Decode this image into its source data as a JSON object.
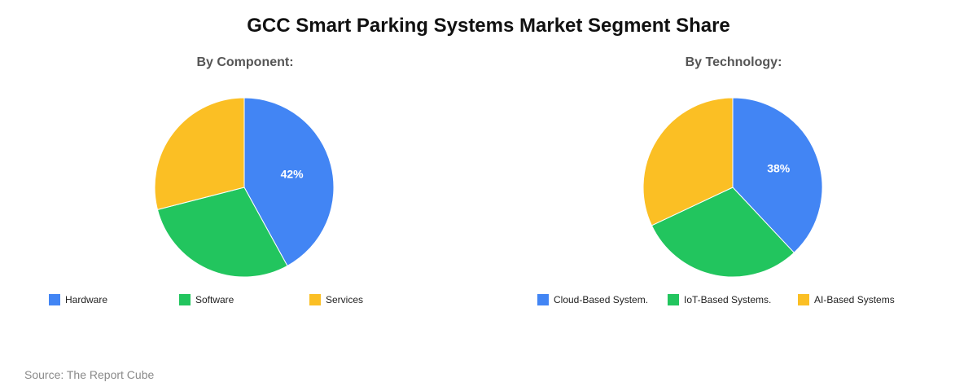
{
  "title": "GCC Smart Parking Systems Market Segment Share",
  "source": "Source: The Report Cube",
  "chart_data": [
    {
      "type": "pie",
      "title": "By Component:",
      "categories": [
        "Hardware",
        "Software",
        "Services"
      ],
      "values": [
        42,
        29,
        29
      ],
      "colors": [
        "#4285F4",
        "#22C55E",
        "#FBBF24"
      ],
      "data_labels": [
        "42%",
        "",
        ""
      ],
      "legend": "bottom"
    },
    {
      "type": "pie",
      "title": "By Technology:",
      "categories": [
        "Cloud-Based System.",
        "IoT-Based Systems.",
        "AI-Based Systems"
      ],
      "values": [
        38,
        30,
        32
      ],
      "colors": [
        "#4285F4",
        "#22C55E",
        "#FBBF24"
      ],
      "data_labels": [
        "38%",
        "",
        ""
      ],
      "legend": "bottom"
    }
  ]
}
